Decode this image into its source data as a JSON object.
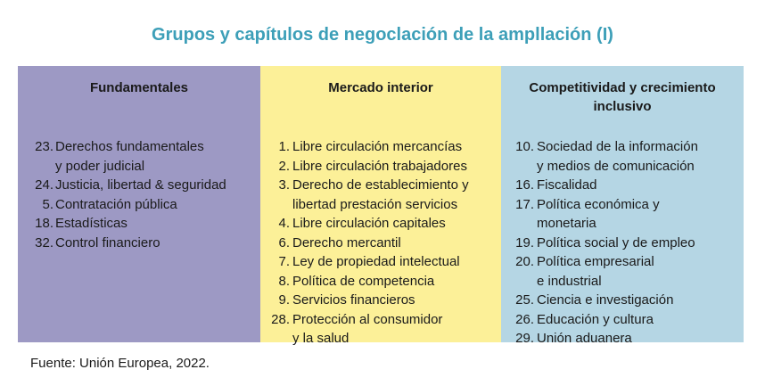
{
  "title": "Grupos y capítulos de negoclación de la ampllación (I)",
  "columns": [
    {
      "header": "Fundamentales",
      "color": "#9d99c4",
      "items": [
        {
          "num": "23.",
          "text": "Derechos fundamentales\n y poder judicial"
        },
        {
          "num": "24.",
          "text": "Justicia, libertad & seguridad"
        },
        {
          "num": "5.",
          "text": "Contratación pública"
        },
        {
          "num": "18.",
          "text": "Estadísticas"
        },
        {
          "num": "32.",
          "text": "Control financiero"
        }
      ]
    },
    {
      "header": "Mercado interior",
      "color": "#fcf098",
      "items": [
        {
          "num": "1.",
          "text": "Libre circulación mercancías"
        },
        {
          "num": "2.",
          "text": "Libre circulación trabajadores"
        },
        {
          "num": "3.",
          "text": "Derecho de establecimiento y\nlibertad prestación servicios"
        },
        {
          "num": "4.",
          "text": "Libre circulación capitales"
        },
        {
          "num": "6.",
          "text": "Derecho mercantil"
        },
        {
          "num": "7.",
          "text": "Ley de propiedad intelectual"
        },
        {
          "num": "8.",
          "text": "Política de competencia"
        },
        {
          "num": "9.",
          "text": "Servicios financieros"
        },
        {
          "num": "28.",
          "text": "Protección al consumidor\ny la salud"
        }
      ]
    },
    {
      "header": "Competitividad y crecimiento inclusivo",
      "color": "#b5d6e4",
      "items": [
        {
          "num": "10.",
          "text": "Sociedad de la información\n y medios de comunicación"
        },
        {
          "num": "16.",
          "text": "Fiscalidad"
        },
        {
          "num": "17.",
          "text": "Política económica y\nmonetaria"
        },
        {
          "num": "19.",
          "text": "Política social y de empleo"
        },
        {
          "num": "20.",
          "text": "Política empresarial\n e industrial"
        },
        {
          "num": "25.",
          "text": "Ciencia e investigación"
        },
        {
          "num": "26.",
          "text": "Educación y cultura"
        },
        {
          "num": "29.",
          "text": "Unión aduanera"
        }
      ]
    }
  ],
  "source": "Fuente: Unión Europea, 2022."
}
